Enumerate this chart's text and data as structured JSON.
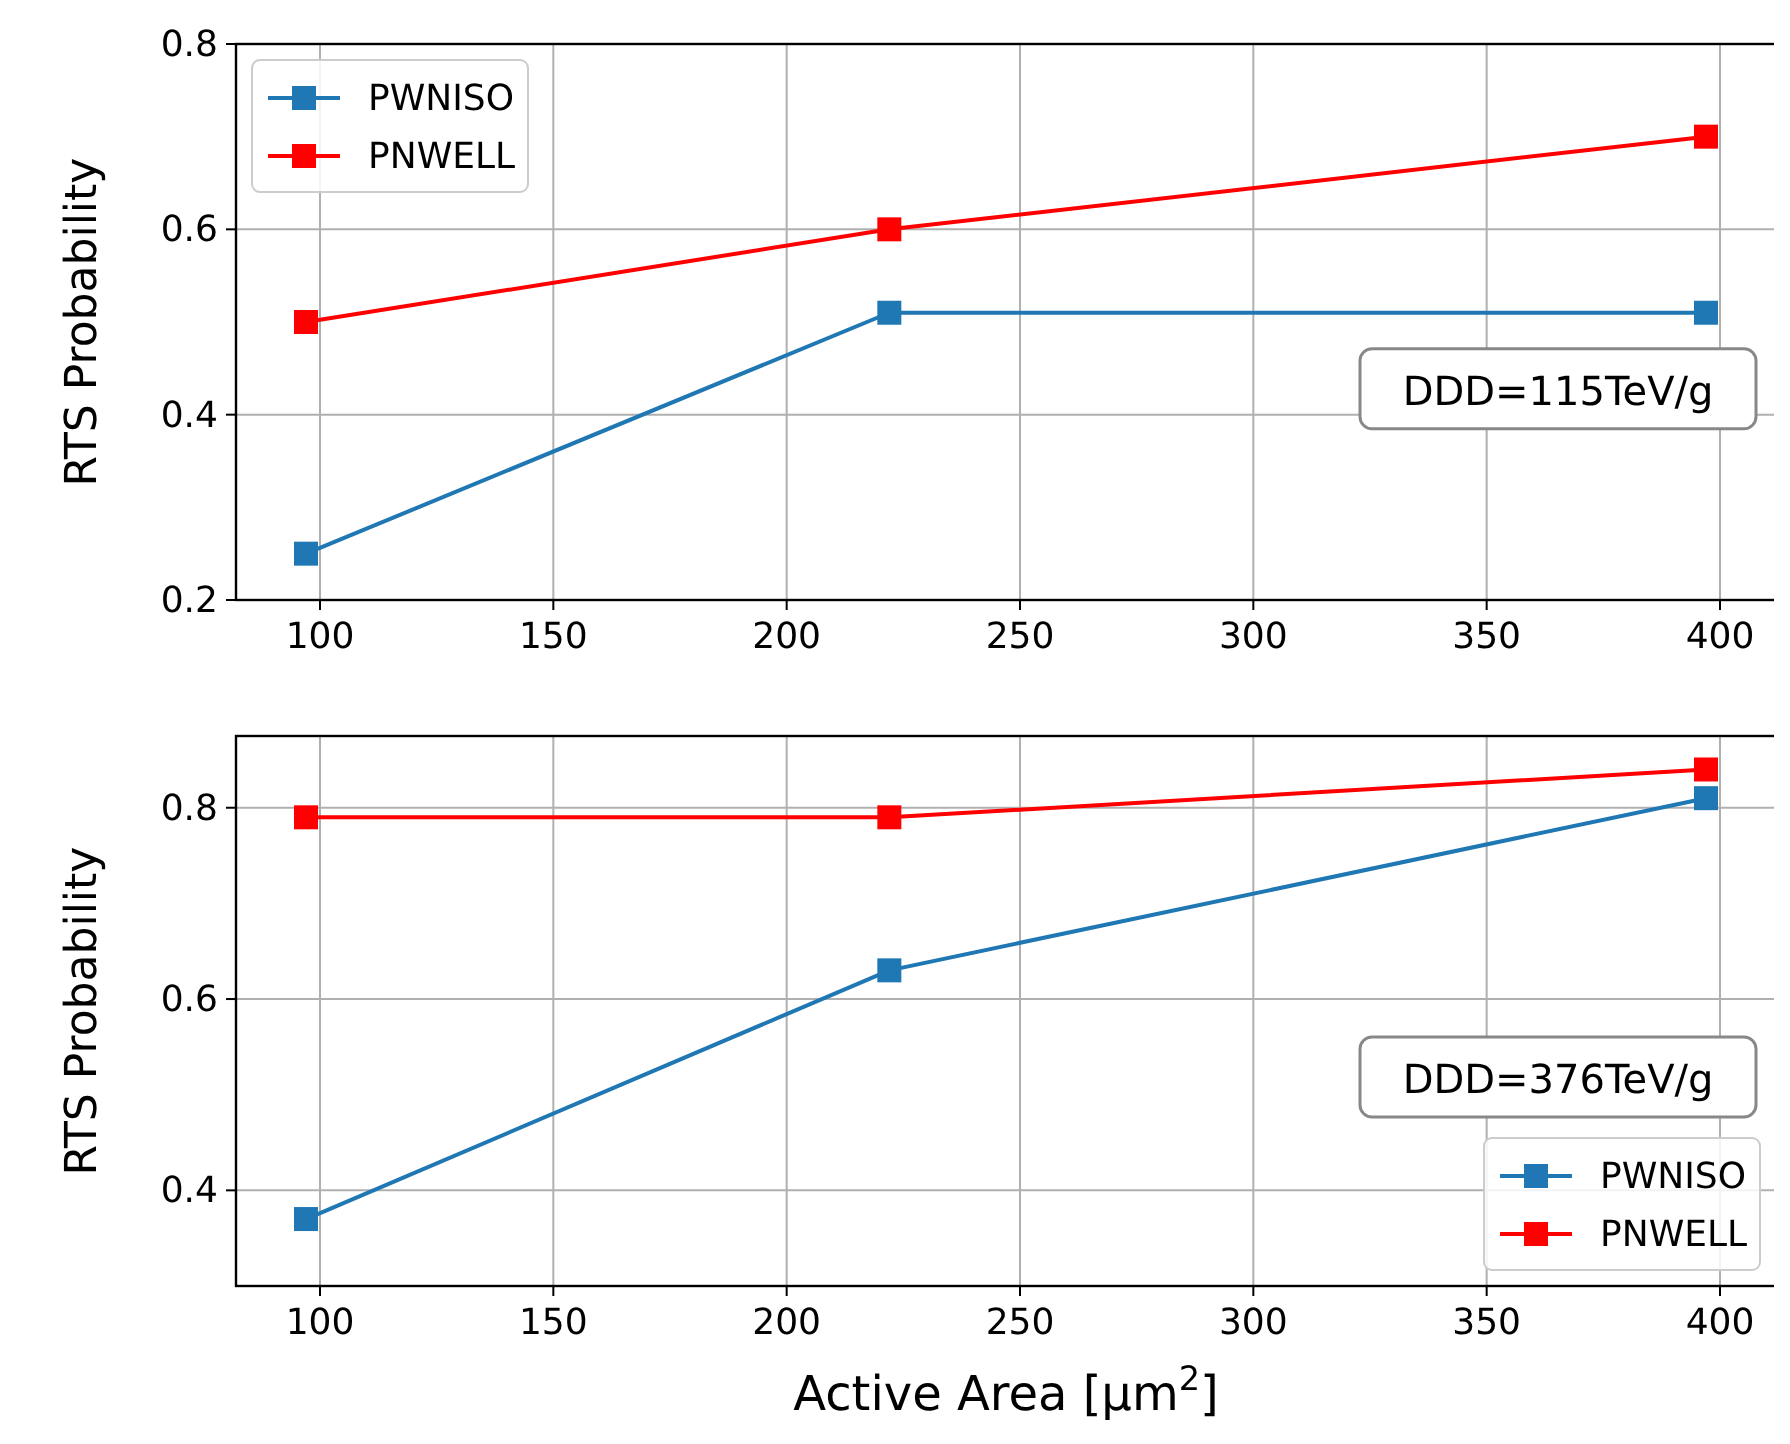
{
  "chart_data": [
    {
      "type": "line",
      "x": [
        97,
        222,
        397
      ],
      "ylabel": "RTS Probability",
      "xlim": [
        82,
        412
      ],
      "ylim": [
        0.2,
        0.8
      ],
      "xticks": [
        100,
        150,
        200,
        250,
        300,
        350,
        400
      ],
      "yticks": [
        0.2,
        0.4,
        0.6,
        0.8
      ],
      "grid": true,
      "legend": "top left",
      "marker": "square",
      "line_style": "solid",
      "annotations": [
        "DDD=115TeV/g"
      ],
      "series": [
        {
          "name": "PWNISO",
          "color": "#1f77b4",
          "values": [
            0.25,
            0.51,
            0.51
          ]
        },
        {
          "name": "PNWELL",
          "color": "#ff0000",
          "values": [
            0.5,
            0.6,
            0.7
          ]
        }
      ]
    },
    {
      "type": "line",
      "x": [
        97,
        222,
        397
      ],
      "xlabel": "Active Area [μm$^{2}$]",
      "ylabel": "RTS Probability",
      "xlim": [
        82,
        412
      ],
      "ylim": [
        0.3,
        0.875
      ],
      "xticks": [
        100,
        150,
        200,
        250,
        300,
        350,
        400
      ],
      "yticks": [
        0.4,
        0.6,
        0.8
      ],
      "grid": true,
      "legend": "bottom right",
      "marker": "square",
      "line_style": "solid",
      "annotations": [
        "DDD=376TeV/g"
      ],
      "series": [
        {
          "name": "PWNISO",
          "color": "#1f77b4",
          "values": [
            0.37,
            0.63,
            0.81
          ]
        },
        {
          "name": "PNWELL",
          "color": "#ff0000",
          "values": [
            0.79,
            0.79,
            0.84
          ]
        }
      ]
    }
  ]
}
